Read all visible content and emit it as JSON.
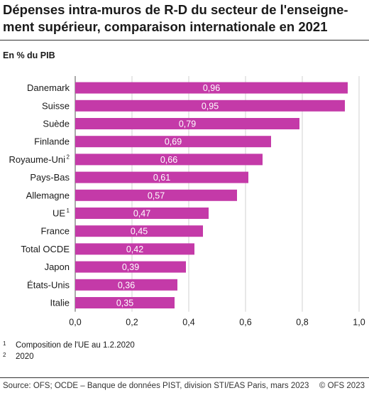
{
  "title": "Dépenses intra-muros de R-D du secteur de l'enseigne-ment supérieur, comparaison internationale en 2021",
  "unit_label": "En % du PIB",
  "chart_data": {
    "type": "bar",
    "orientation": "horizontal",
    "title": "Dépenses intra-muros de R-D du secteur de l'enseigne-ment supérieur, comparaison internationale en 2021",
    "ylabel": "En % du PIB",
    "categories": [
      "Danemark",
      "Suisse",
      "Suède",
      "Finlande",
      "Royaume-Uni",
      "Pays-Bas",
      "Allemagne",
      "UE",
      "France",
      "Total OCDE",
      "Japon",
      "États-Unis",
      "Italie"
    ],
    "category_notes": [
      "",
      "",
      "",
      "",
      "2",
      "",
      "",
      "1",
      "",
      "",
      "",
      "",
      ""
    ],
    "values": [
      0.96,
      0.95,
      0.79,
      0.69,
      0.66,
      0.61,
      0.57,
      0.47,
      0.45,
      0.42,
      0.39,
      0.36,
      0.35
    ],
    "value_labels": [
      "0,96",
      "0,95",
      "0,79",
      "0,69",
      "0,66",
      "0,61",
      "0,57",
      "0,47",
      "0,45",
      "0,42",
      "0,39",
      "0,36",
      "0,35"
    ],
    "xlim": [
      0,
      1.0
    ],
    "ticks": [
      0,
      0.2,
      0.4,
      0.6,
      0.8,
      1.0
    ],
    "tick_labels": [
      "0,0",
      "0,2",
      "0,4",
      "0,6",
      "0,8",
      "1,0"
    ],
    "grid": true,
    "bar_color": "#c43aa8"
  },
  "footnotes": [
    {
      "mark": "1",
      "text": "Composition de l'UE au 1.2.2020"
    },
    {
      "mark": "2",
      "text": "2020"
    }
  ],
  "source": "Source: OFS; OCDE – Banque de données PIST, division STI/EAS Paris, mars 2023",
  "copyright": "© OFS 2023"
}
